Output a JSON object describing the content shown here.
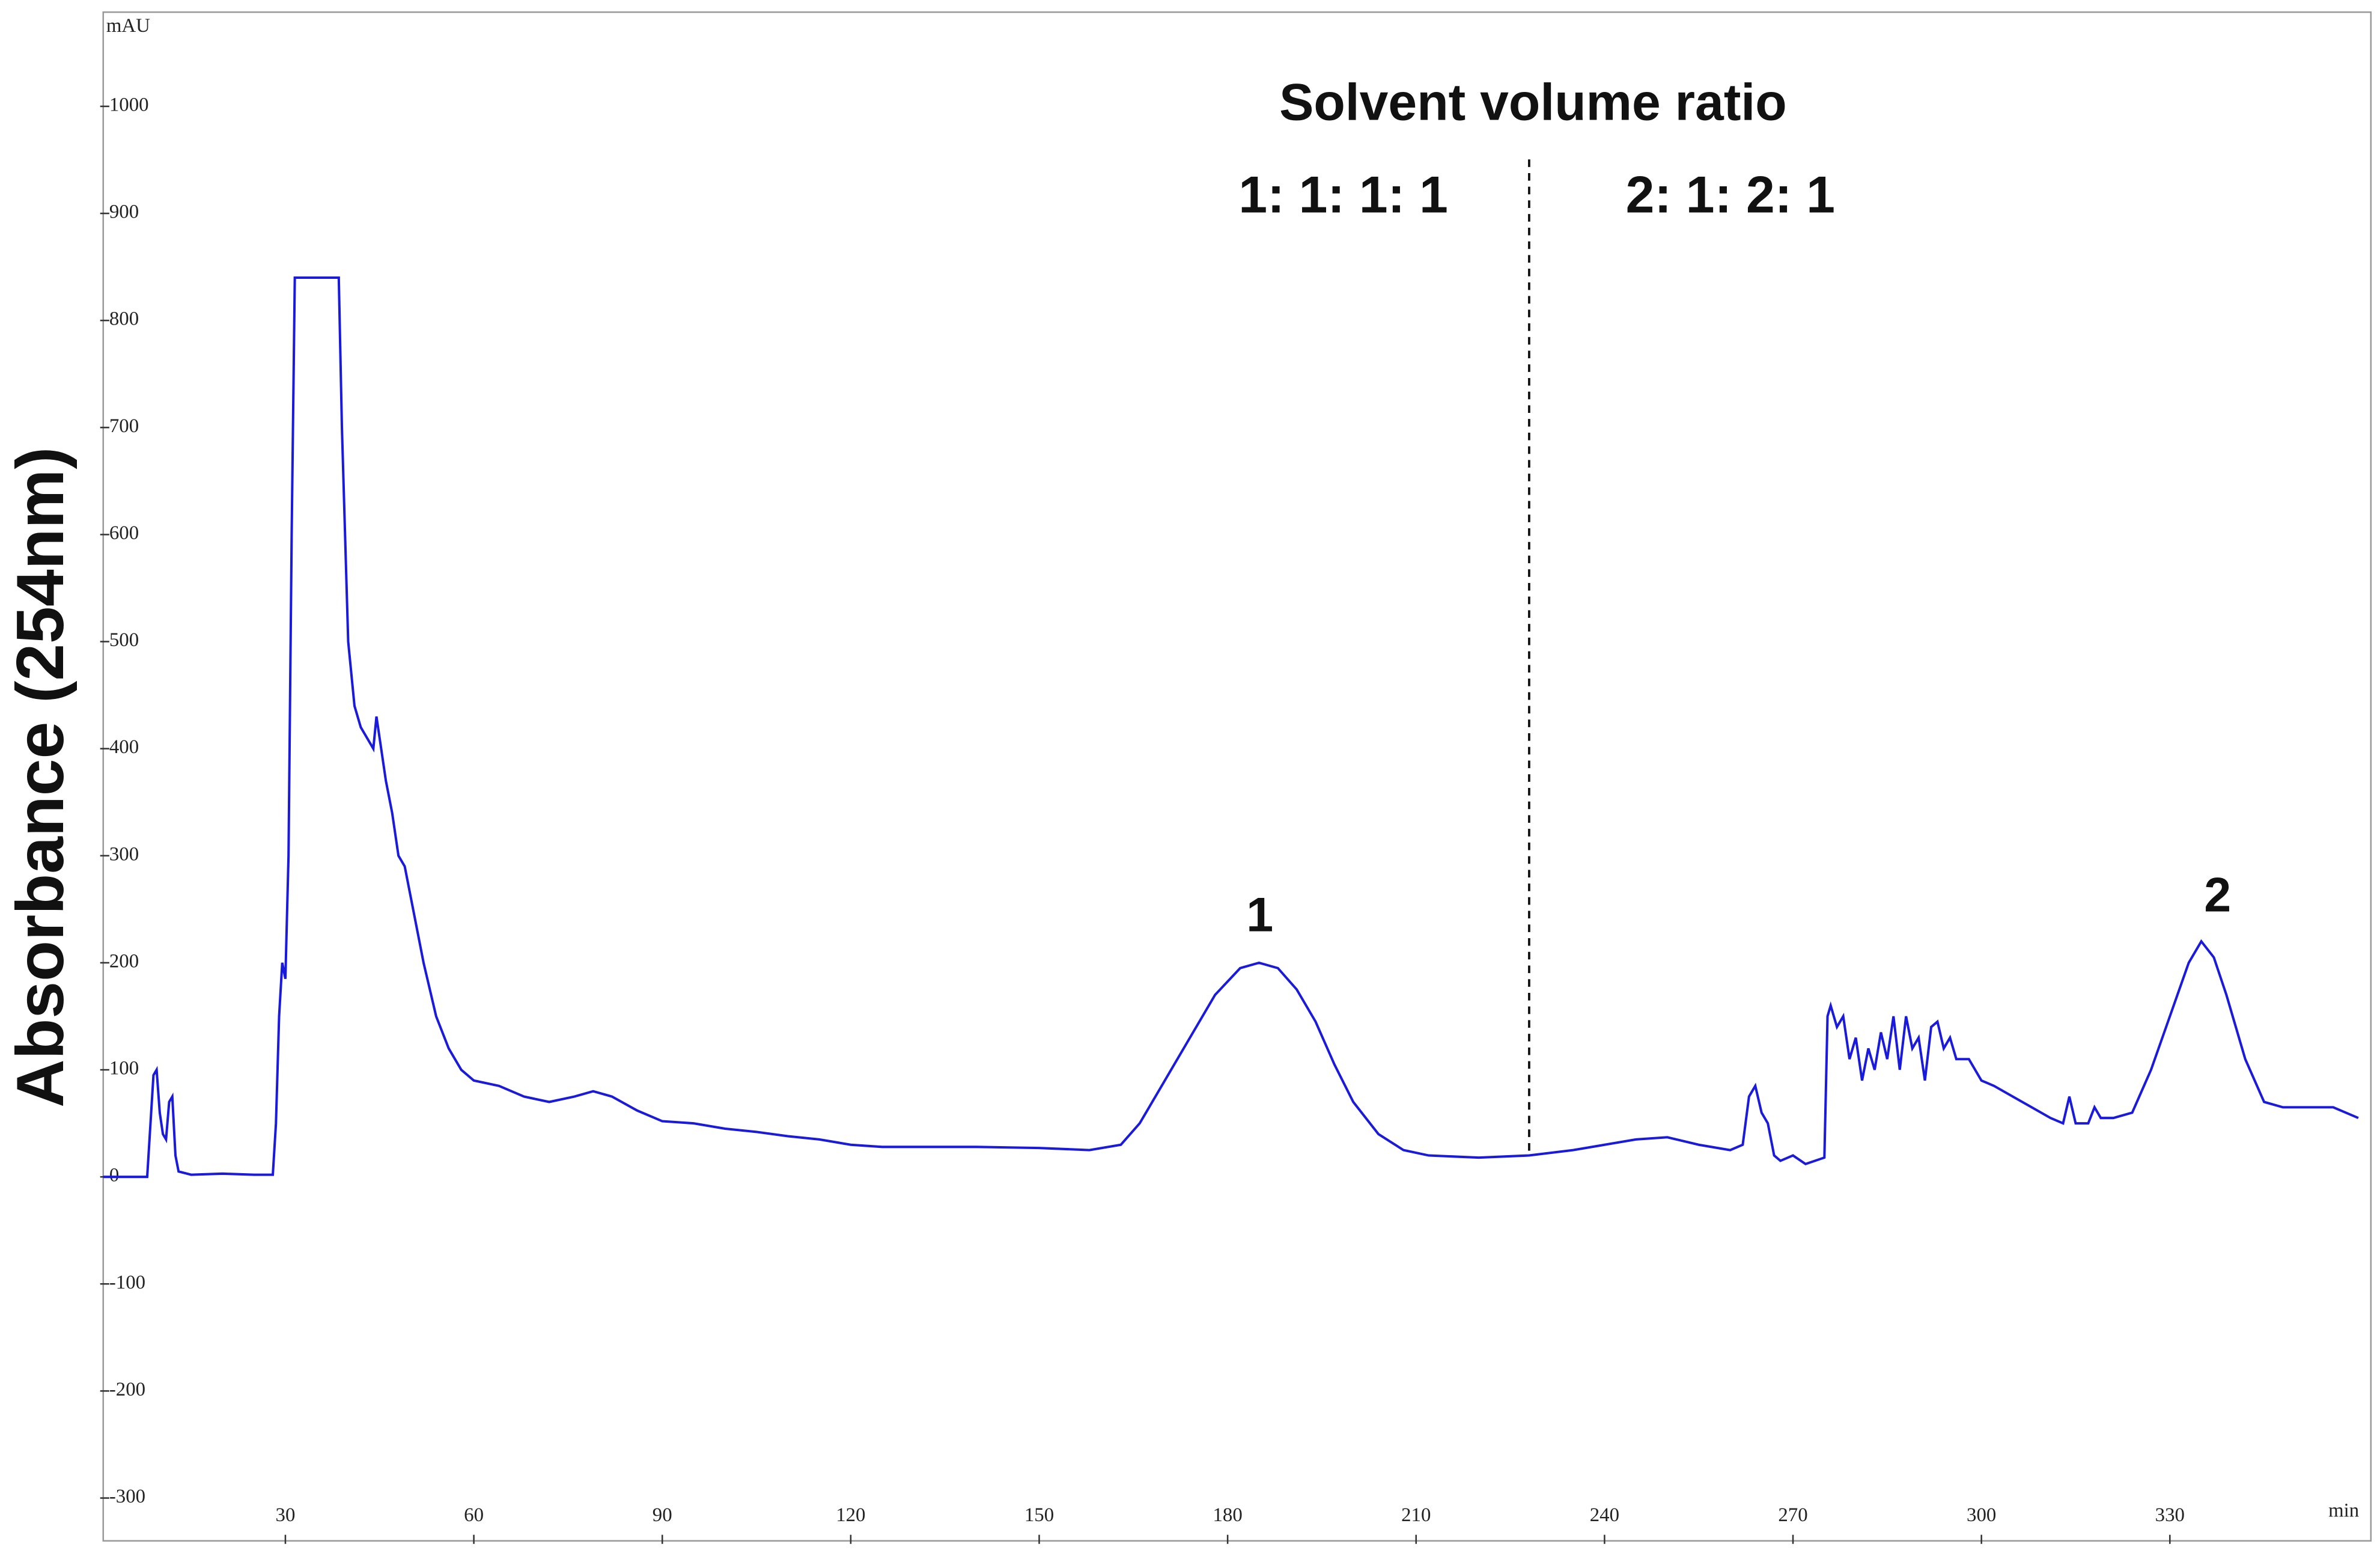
{
  "chart_data": {
    "type": "line",
    "y_axis_title": "Absorbance (254nm)",
    "y_unit": "mAU",
    "x_unit": "min",
    "annotations": {
      "heading": "Solvent volume ratio",
      "left_ratio": "1: 1: 1: 1",
      "right_ratio": "2: 1: 2: 1",
      "peak1": "1",
      "peak2": "2"
    },
    "divider_x": 228,
    "xlim": [
      1,
      362
    ],
    "ylim": [
      -340,
      1088
    ],
    "xticks": [
      30,
      60,
      90,
      120,
      150,
      180,
      210,
      240,
      270,
      300,
      330
    ],
    "yticks": [
      -300,
      -200,
      -100,
      0,
      100,
      200,
      300,
      400,
      500,
      600,
      700,
      800,
      900,
      1000
    ],
    "series": [
      {
        "color": "#1a1adc",
        "x": [
          1,
          8,
          9,
          9.5,
          10,
          10.5,
          11,
          11.5,
          12,
          12.5,
          13,
          15,
          20,
          25,
          28,
          28.5,
          29,
          29.5,
          30,
          30.5,
          31,
          31.5,
          38.5,
          39,
          40,
          41,
          42,
          43,
          44,
          44.5,
          45,
          46,
          47,
          48,
          49,
          50,
          52,
          54,
          56,
          58,
          60,
          64,
          68,
          72,
          76,
          79,
          82,
          86,
          90,
          95,
          100,
          105,
          110,
          115,
          120,
          125,
          130,
          140,
          150,
          158,
          163,
          166,
          170,
          174,
          178,
          182,
          185,
          188,
          191,
          194,
          197,
          200,
          204,
          208,
          212,
          220,
          228,
          235,
          240,
          245,
          250,
          255,
          260,
          262,
          263,
          264,
          265,
          266,
          267,
          268,
          270,
          272,
          275,
          275.5,
          276,
          277,
          278,
          279,
          280,
          281,
          282,
          283,
          284,
          285,
          286,
          287,
          288,
          289,
          290,
          291,
          292,
          293,
          294,
          295,
          296,
          298,
          300,
          302,
          305,
          308,
          311,
          313,
          314,
          315,
          317,
          318,
          319,
          321,
          324,
          327,
          330,
          333,
          335,
          337,
          339,
          342,
          345,
          348,
          352,
          356,
          360
        ],
        "values": [
          0,
          0,
          95,
          100,
          60,
          40,
          35,
          70,
          75,
          20,
          5,
          2,
          3,
          2,
          2,
          50,
          150,
          200,
          185,
          300,
          600,
          840,
          840,
          700,
          500,
          440,
          420,
          410,
          400,
          430,
          410,
          370,
          340,
          300,
          290,
          260,
          200,
          150,
          120,
          100,
          90,
          85,
          75,
          70,
          75,
          80,
          75,
          62,
          52,
          50,
          45,
          42,
          38,
          35,
          30,
          28,
          28,
          28,
          27,
          25,
          30,
          50,
          90,
          130,
          170,
          195,
          200,
          195,
          175,
          145,
          105,
          70,
          40,
          25,
          20,
          18,
          20,
          25,
          30,
          35,
          37,
          30,
          25,
          30,
          75,
          85,
          60,
          50,
          20,
          15,
          20,
          12,
          18,
          150,
          160,
          140,
          150,
          110,
          130,
          90,
          120,
          100,
          135,
          110,
          150,
          100,
          150,
          120,
          130,
          90,
          140,
          145,
          120,
          130,
          110,
          110,
          90,
          85,
          75,
          65,
          55,
          50,
          75,
          50,
          50,
          65,
          55,
          55,
          60,
          100,
          150,
          200,
          220,
          205,
          170,
          110,
          70,
          65,
          65,
          65,
          55
        ]
      }
    ]
  }
}
